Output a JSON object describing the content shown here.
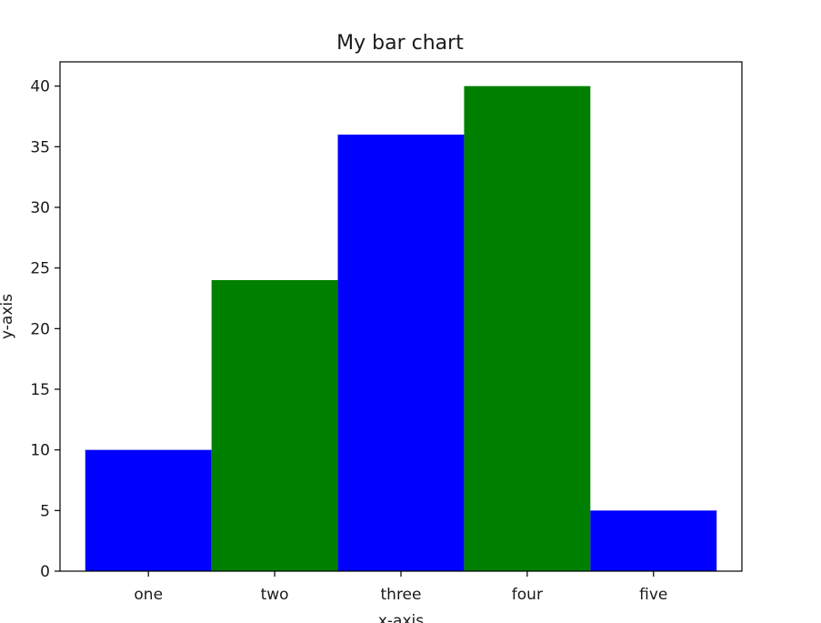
{
  "chart_data": {
    "type": "bar",
    "title": "My bar chart",
    "xlabel": "x-axis",
    "ylabel": "y-axis",
    "categories": [
      "one",
      "two",
      "three",
      "four",
      "five"
    ],
    "values": [
      10,
      24,
      36,
      40,
      5
    ],
    "bar_colors": [
      "#0000ff",
      "#008000",
      "#0000ff",
      "#008000",
      "#0000ff"
    ],
    "ylim": [
      0,
      42
    ],
    "yticks": [
      0,
      5,
      10,
      15,
      20,
      25,
      30,
      35,
      40
    ],
    "grid": false,
    "legend": "none"
  }
}
